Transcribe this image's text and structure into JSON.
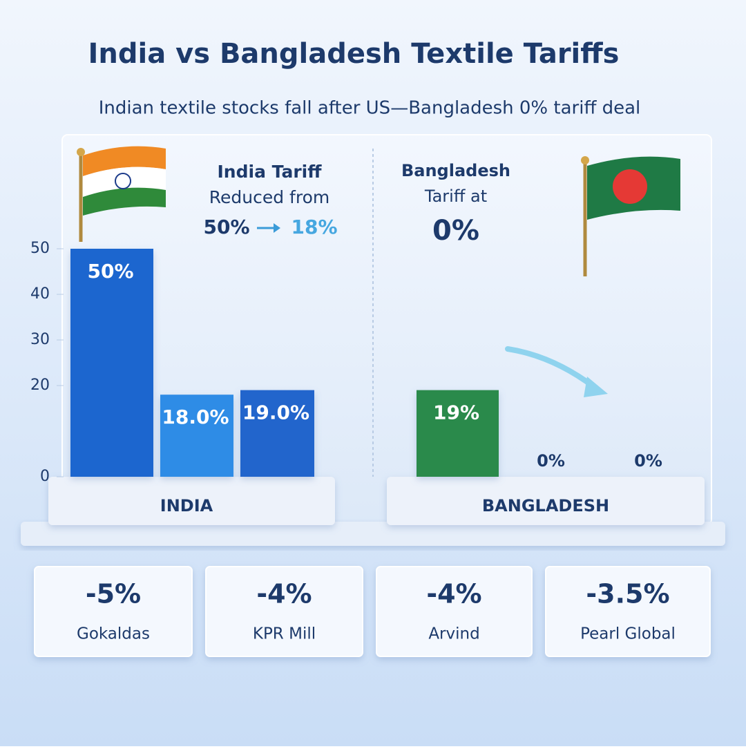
{
  "header": {
    "title": "India vs Bangladesh Textile Tariffs",
    "subtitle": "Indian textile stocks fall after US—Bangladesh 0% tariff deal"
  },
  "annotations": {
    "india": {
      "line1": "India Tariff",
      "line2": "Reduced from",
      "from": "50%",
      "to": "18%"
    },
    "bangladesh": {
      "line1": "Bangladesh",
      "line2": "Tariff at",
      "value": "0%"
    }
  },
  "chart_data": {
    "type": "bar",
    "groups": [
      "INDIA",
      "BANGLADESH"
    ],
    "categories": [
      null,
      null,
      null,
      null,
      null,
      null
    ],
    "values": [
      50,
      18,
      19,
      19,
      0,
      0
    ],
    "value_labels": [
      "50%",
      "18.0%",
      "19.0%",
      "19%",
      "0%",
      "0%"
    ],
    "colors": [
      "#1f66cf",
      "#2f8ce6",
      "#2465cc",
      "#2c8a4b",
      "#2f8a48",
      "#2e8b4e"
    ],
    "ylim": [
      0,
      50
    ],
    "yticks": [
      0,
      20,
      30,
      40,
      50
    ]
  },
  "stocks": [
    {
      "change": "-5%",
      "name": "Gokaldas"
    },
    {
      "change": "-4%",
      "name": "KPR Mill"
    },
    {
      "change": "-4%",
      "name": "Arvind"
    },
    {
      "change": "-3.5%",
      "name": "Pearl Global"
    }
  ]
}
